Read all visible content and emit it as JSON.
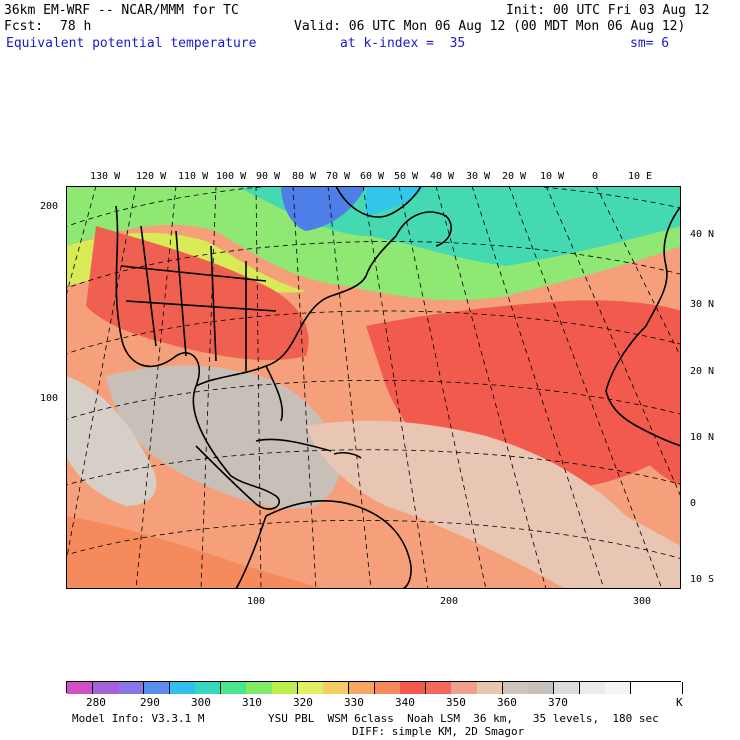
{
  "header": {
    "model": "36km EM-WRF -- NCAR/MMM for TC",
    "init": "Init: 00 UTC Fri 03 Aug 12",
    "fcst_label": "Fcst:",
    "fcst_value": "78 h",
    "valid": "Valid: 06 UTC Mon 06 Aug 12 (00 MDT Mon 06 Aug 12)",
    "field": "Equivalent potential temperature",
    "level": "at k-index =  35",
    "smooth": "sm= 6"
  },
  "map": {
    "top_lon_labels": [
      "130 W",
      "120 W",
      "110 W",
      "100 W",
      "90 W",
      "80 W",
      "70 W",
      "60 W",
      "50 W",
      "40 W",
      "30 W",
      "20 W",
      "10 W",
      "0",
      "10 E"
    ],
    "right_lat_labels": [
      "40 N",
      "30 N",
      "20 N",
      "10 N",
      "0",
      "10 S"
    ],
    "left_grid_labels": [
      "200",
      "100"
    ],
    "bottom_grid_labels": [
      "100",
      "200",
      "300"
    ],
    "colors": {
      "cold_blue": "#4d7fe6",
      "teal": "#33d9bf",
      "green": "#66e680",
      "yellow_green": "#b8e64d",
      "orange": "#f58a5c",
      "red": "#f25a4d",
      "salmon": "#f0a08a",
      "pink_tan": "#e9c6b4",
      "gray": "#c8bfb8",
      "light_gray": "#dcdcdc"
    }
  },
  "colorbar": {
    "labels": [
      "280",
      "290",
      "300",
      "310",
      "320",
      "330",
      "340",
      "350",
      "360",
      "370",
      "K"
    ],
    "colors": [
      "#d24fc8",
      "#a661d8",
      "#8a75e6",
      "#5b8ee8",
      "#33bff0",
      "#33d9bf",
      "#4de68c",
      "#80eb66",
      "#b8ee4d",
      "#e6ee66",
      "#f5cc66",
      "#f5a660",
      "#f58a5c",
      "#f25a4d",
      "#f26a5a",
      "#f0a08a",
      "#e9c6b4",
      "#d2c4bc",
      "#c8c0ba",
      "#dcdcdc",
      "#ebebeb",
      "#f5f5f5",
      "#ffffff",
      "#ffffff"
    ]
  },
  "footer": {
    "model_info": "Model Info: V3.3.1 M",
    "physics": "YSU PBL  WSM 6class  Noah LSM  36 km,   35 levels,  180 sec",
    "diff": "DIFF: simple KM, 2D Smagor"
  }
}
